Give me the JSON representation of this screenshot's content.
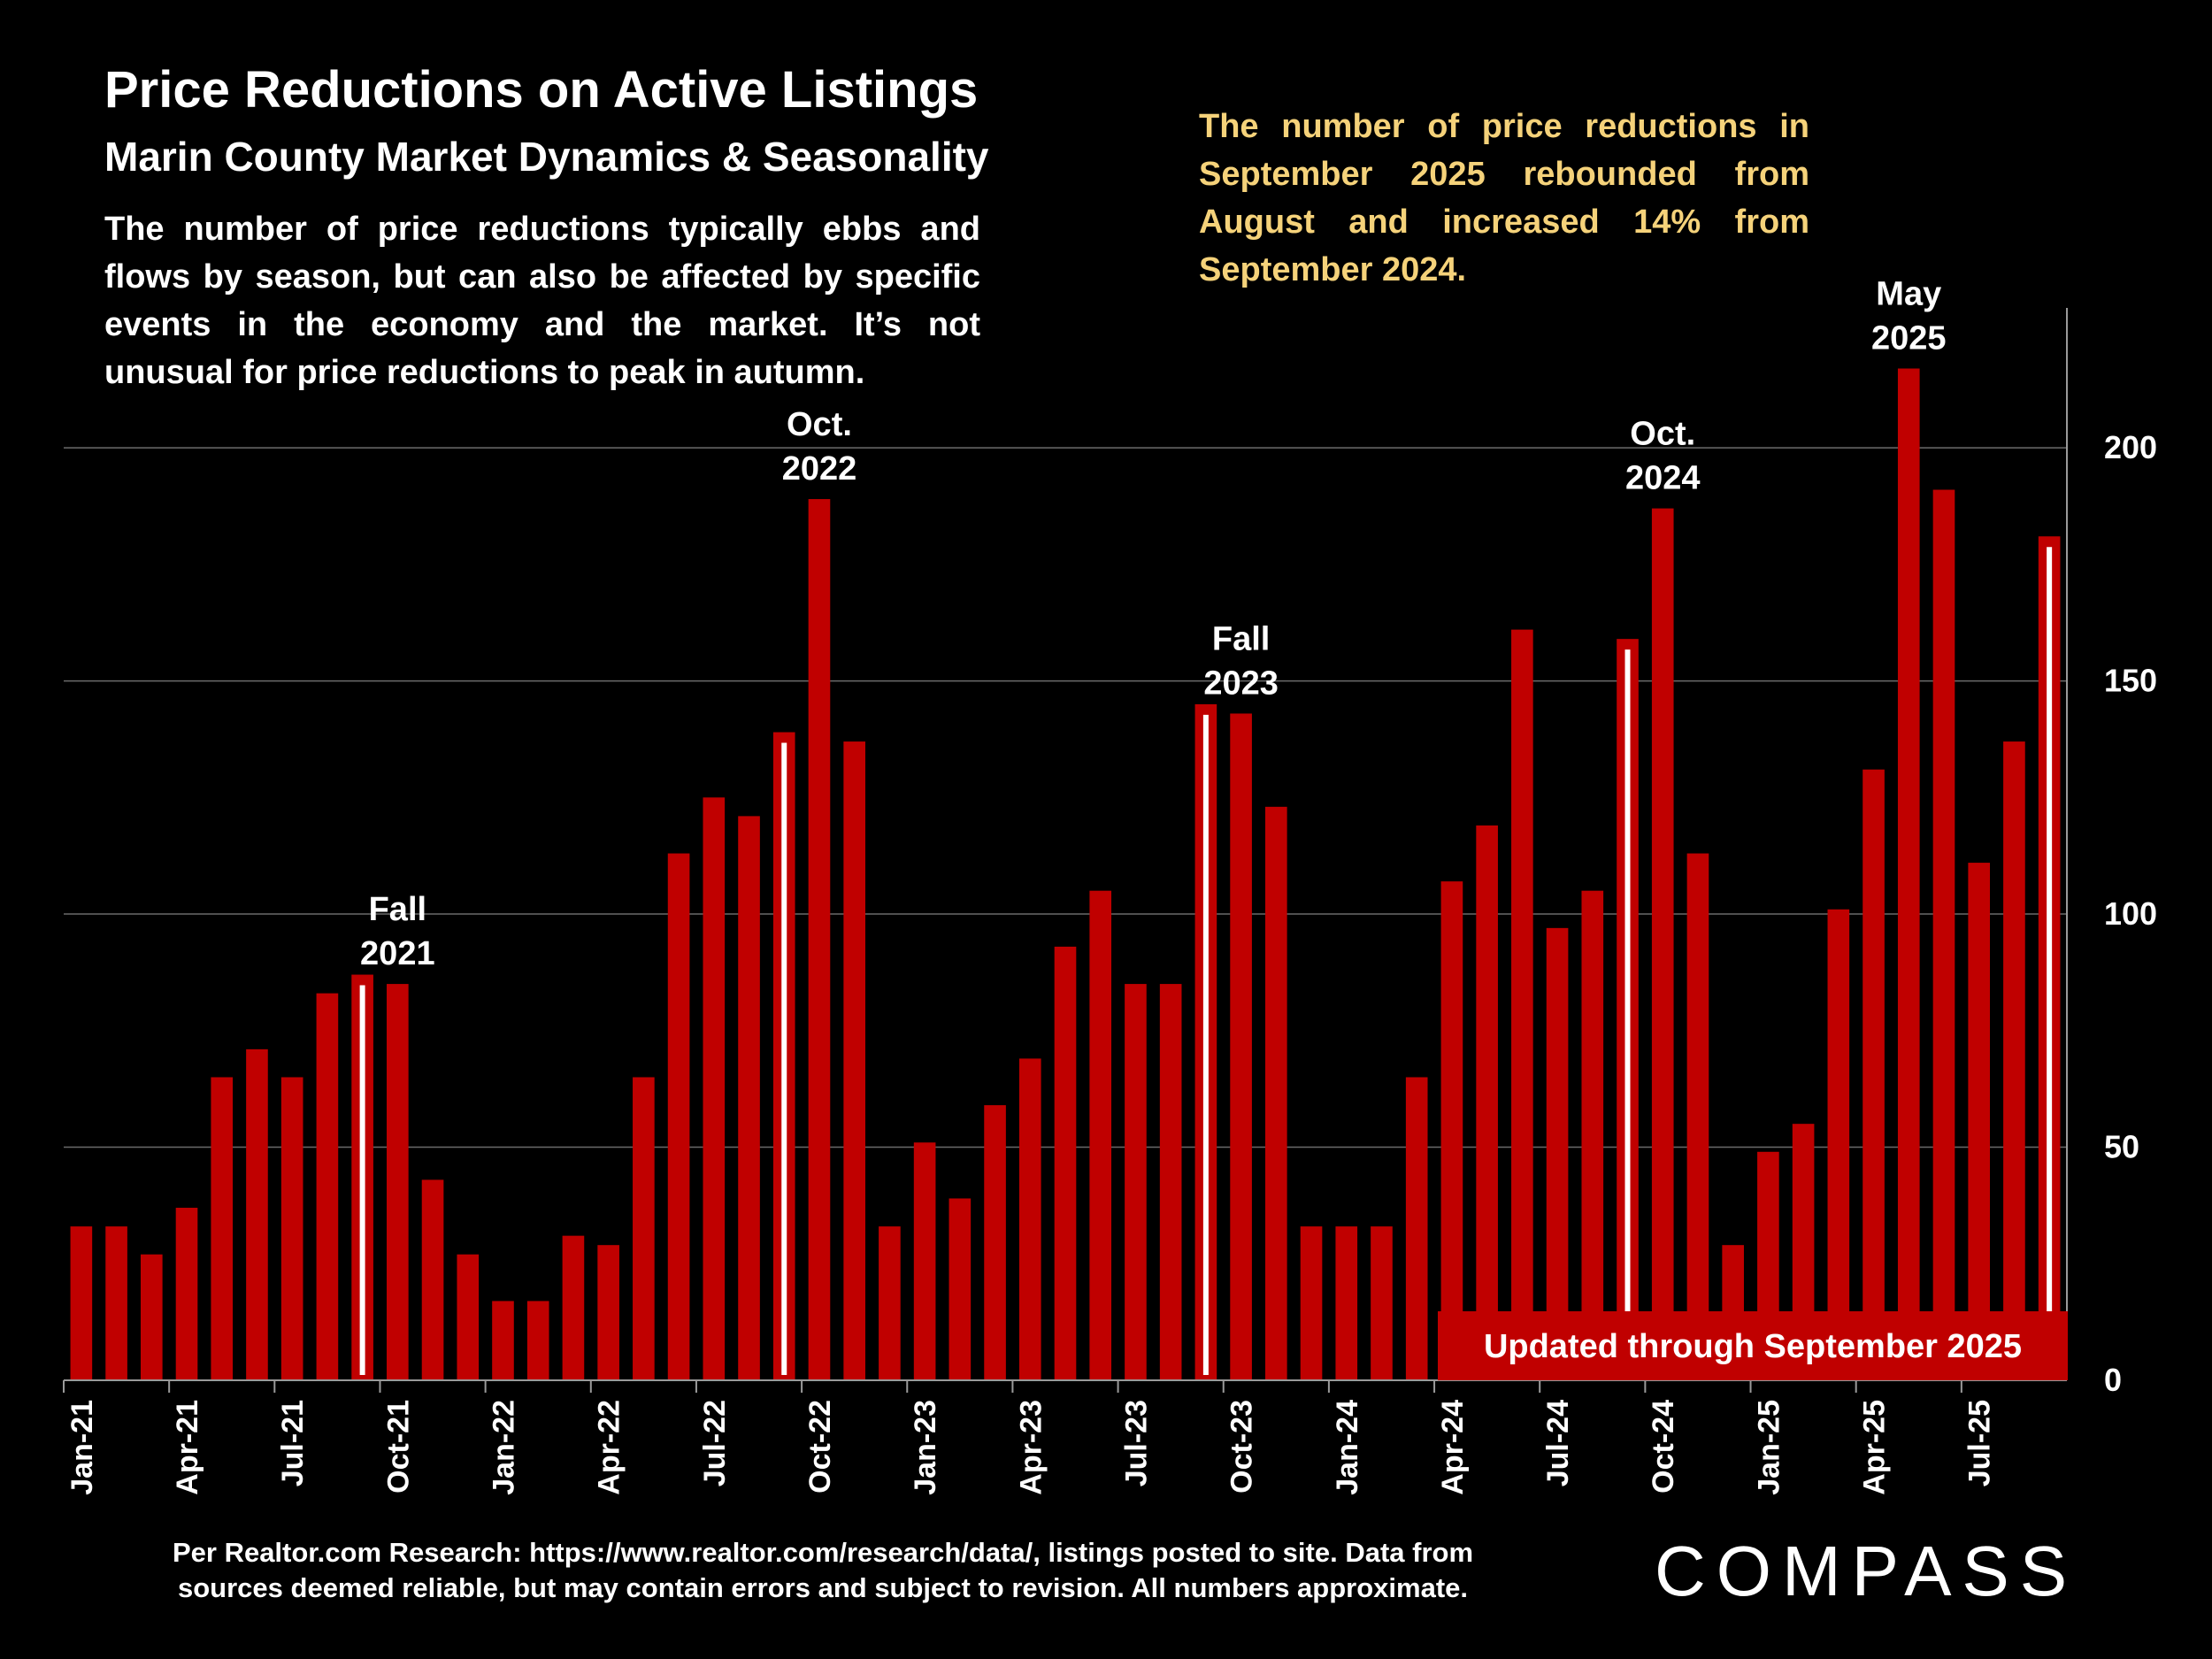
{
  "header": {
    "title": "Price Reductions on Active Listings",
    "subtitle": "Marin County Market Dynamics & Seasonality",
    "description": "The number of price reductions typically ebbs and flows by season, but can also be affected by specific events in the economy and the market. It’s not unusual for price reductions to peak in autumn.",
    "callout": "The number of price reductions in September 2025 rebounded from August and increased 14% from September 2024."
  },
  "footer": {
    "note_line1": "Per Realtor.com Research:  https://www.realtor.com/research/data/, listings posted to site. Data from",
    "note_line2": "sources deemed reliable, but may contain errors and subject to revision. All numbers approximate.",
    "logo": "COMPASS"
  },
  "colors": {
    "bar": "#C00000",
    "highlight": "#FFFFFF",
    "callout_text": "#F5D27A",
    "background": "#000000"
  },
  "chart_data": {
    "type": "bar",
    "title": "Price Reductions on Active Listings",
    "categories": [
      "Jan-21",
      "Feb-21",
      "Mar-21",
      "Apr-21",
      "May-21",
      "Jun-21",
      "Jul-21",
      "Aug-21",
      "Sep-21",
      "Oct-21",
      "Nov-21",
      "Dec-21",
      "Jan-22",
      "Feb-22",
      "Mar-22",
      "Apr-22",
      "May-22",
      "Jun-22",
      "Jul-22",
      "Aug-22",
      "Sep-22",
      "Oct-22",
      "Nov-22",
      "Dec-22",
      "Jan-23",
      "Feb-23",
      "Mar-23",
      "Apr-23",
      "May-23",
      "Jun-23",
      "Jul-23",
      "Aug-23",
      "Sep-23",
      "Oct-23",
      "Nov-23",
      "Dec-23",
      "Jan-24",
      "Feb-24",
      "Mar-24",
      "Apr-24",
      "May-24",
      "Jun-24",
      "Jul-24",
      "Aug-24",
      "Sep-24",
      "Oct-24",
      "Nov-24",
      "Dec-24",
      "Jan-25",
      "Feb-25",
      "Mar-25",
      "Apr-25",
      "May-25",
      "Jun-25",
      "Jul-25",
      "Aug-25",
      "Sep-25"
    ],
    "tick_labels": [
      "Jan-21",
      "Apr-21",
      "Jul-21",
      "Oct-21",
      "Jan-22",
      "Apr-22",
      "Jul-22",
      "Oct-22",
      "Jan-23",
      "Apr-23",
      "Jul-23",
      "Oct-23",
      "Jan-24",
      "Apr-24",
      "Jul-24",
      "Oct-24",
      "Jan-25",
      "Apr-25",
      "Jul-25"
    ],
    "values": [
      33,
      33,
      27,
      37,
      65,
      71,
      65,
      83,
      87,
      85,
      43,
      27,
      17,
      17,
      31,
      29,
      65,
      113,
      125,
      121,
      139,
      189,
      137,
      33,
      51,
      39,
      59,
      69,
      93,
      105,
      85,
      85,
      145,
      143,
      123,
      33,
      33,
      33,
      65,
      107,
      119,
      161,
      97,
      105,
      159,
      187,
      113,
      29,
      49,
      55,
      101,
      131,
      217,
      191,
      111,
      137,
      181
    ],
    "highlighted": [
      "Sep-21",
      "Sep-22",
      "Sep-23",
      "Sep-24",
      "Sep-25"
    ],
    "annotations": [
      {
        "category": "Oct-21",
        "line1": "Fall",
        "line2": "2021"
      },
      {
        "category": "Oct-22",
        "line1": "Oct.",
        "line2": "2022"
      },
      {
        "category": "Oct-23",
        "line1": "Fall",
        "line2": "2023"
      },
      {
        "category": "Oct-24",
        "line1": "Oct.",
        "line2": "2024"
      },
      {
        "category": "May-25",
        "line1": "May",
        "line2": "2025"
      }
    ],
    "update_label": "Updated through September 2025",
    "ylim": [
      0,
      230
    ],
    "yticks": [
      0,
      50,
      100,
      150,
      200
    ],
    "y_axis_side": "right",
    "grid": true
  }
}
